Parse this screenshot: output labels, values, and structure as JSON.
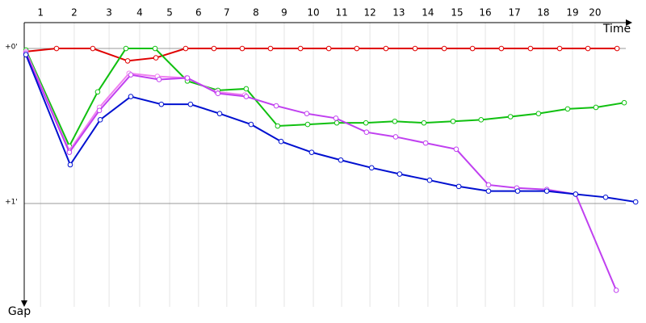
{
  "chart_data": {
    "type": "line",
    "x_label": "Time",
    "y_label": "Gap",
    "xlim": [
      0,
      21.48
    ],
    "ylim": [
      -0.167,
      1.667
    ],
    "xticks": [
      {
        "value": 0.57,
        "label": "1"
      },
      {
        "value": 1.75,
        "label": "2"
      },
      {
        "value": 2.97,
        "label": "3"
      },
      {
        "value": 4.04,
        "label": "4"
      },
      {
        "value": 5.09,
        "label": "5"
      },
      {
        "value": 6.1,
        "label": "6"
      },
      {
        "value": 7.09,
        "label": "7"
      },
      {
        "value": 8.11,
        "label": "8"
      },
      {
        "value": 9.1,
        "label": "9"
      },
      {
        "value": 10.12,
        "label": "10"
      },
      {
        "value": 11.11,
        "label": "11"
      },
      {
        "value": 12.1,
        "label": "12"
      },
      {
        "value": 13.11,
        "label": "13"
      },
      {
        "value": 14.13,
        "label": "14"
      },
      {
        "value": 15.15,
        "label": "15"
      },
      {
        "value": 16.14,
        "label": "16"
      },
      {
        "value": 17.16,
        "label": "17"
      },
      {
        "value": 18.17,
        "label": "18"
      },
      {
        "value": 19.19,
        "label": "19"
      },
      {
        "value": 19.98,
        "label": "20"
      }
    ],
    "yticks": [
      {
        "value": 0,
        "label": "+0'"
      },
      {
        "value": 1,
        "label": "+1'"
      }
    ],
    "grid": true,
    "series": [
      {
        "color": "#e00000",
        "x": [
          0.06,
          1.13,
          2.4,
          3.62,
          4.61,
          5.65,
          6.64,
          7.63,
          8.62,
          9.67,
          10.66,
          11.64,
          12.66,
          13.68,
          14.7,
          15.69,
          16.7,
          17.72,
          18.74,
          19.73,
          20.75
        ],
        "values": [
          0.02,
          0,
          0,
          0.08,
          0.06,
          0,
          0,
          0,
          0,
          0,
          0,
          0,
          0,
          0,
          0,
          0,
          0,
          0,
          0,
          0,
          0
        ]
      },
      {
        "color": "#10c010",
        "x": [
          0.06,
          1.58,
          2.57,
          3.56,
          4.58,
          5.71,
          6.78,
          7.77,
          8.87,
          9.92,
          10.94,
          11.96,
          12.97,
          13.99,
          15.01,
          15.99,
          17.02,
          18.0,
          19.02,
          20.01,
          21.0
        ],
        "values": [
          0.01,
          0.63,
          0.28,
          0,
          0,
          0.21,
          0.27,
          0.26,
          0.5,
          0.49,
          0.48,
          0.48,
          0.47,
          0.48,
          0.47,
          0.46,
          0.44,
          0.42,
          0.39,
          0.38,
          0.35
        ]
      },
      {
        "color": "#f080f0",
        "x": [
          0.06,
          1.58,
          2.63,
          3.67,
          4.66,
          5.68,
          6.73,
          7.72
        ],
        "values": [
          0.02,
          0.66,
          0.38,
          0.16,
          0.18,
          0.19,
          0.28,
          0.3
        ]
      },
      {
        "color": "#c040f0",
        "x": [
          0.06,
          1.58,
          2.63,
          3.73,
          4.72,
          5.71,
          6.78,
          7.77,
          8.82,
          9.89,
          10.91,
          11.98,
          13.0,
          14.05,
          15.12,
          16.25,
          17.24,
          18.29,
          19.3,
          20.72
        ],
        "values": [
          0.03,
          0.67,
          0.4,
          0.17,
          0.2,
          0.19,
          0.29,
          0.31,
          0.37,
          0.42,
          0.45,
          0.54,
          0.57,
          0.61,
          0.65,
          0.88,
          0.9,
          0.91,
          0.94,
          1.56
        ]
      },
      {
        "color": "#0010d0",
        "x": [
          0.06,
          1.61,
          2.66,
          3.73,
          4.8,
          5.82,
          6.84,
          7.94,
          8.99,
          10.06,
          11.08,
          12.16,
          13.14,
          14.19,
          15.21,
          16.25,
          17.27,
          18.29,
          19.3,
          20.35,
          21.4
        ],
        "values": [
          0.04,
          0.75,
          0.46,
          0.31,
          0.36,
          0.36,
          0.42,
          0.49,
          0.6,
          0.67,
          0.72,
          0.77,
          0.81,
          0.85,
          0.89,
          0.92,
          0.92,
          0.92,
          0.94,
          0.96,
          0.99
        ]
      }
    ]
  }
}
